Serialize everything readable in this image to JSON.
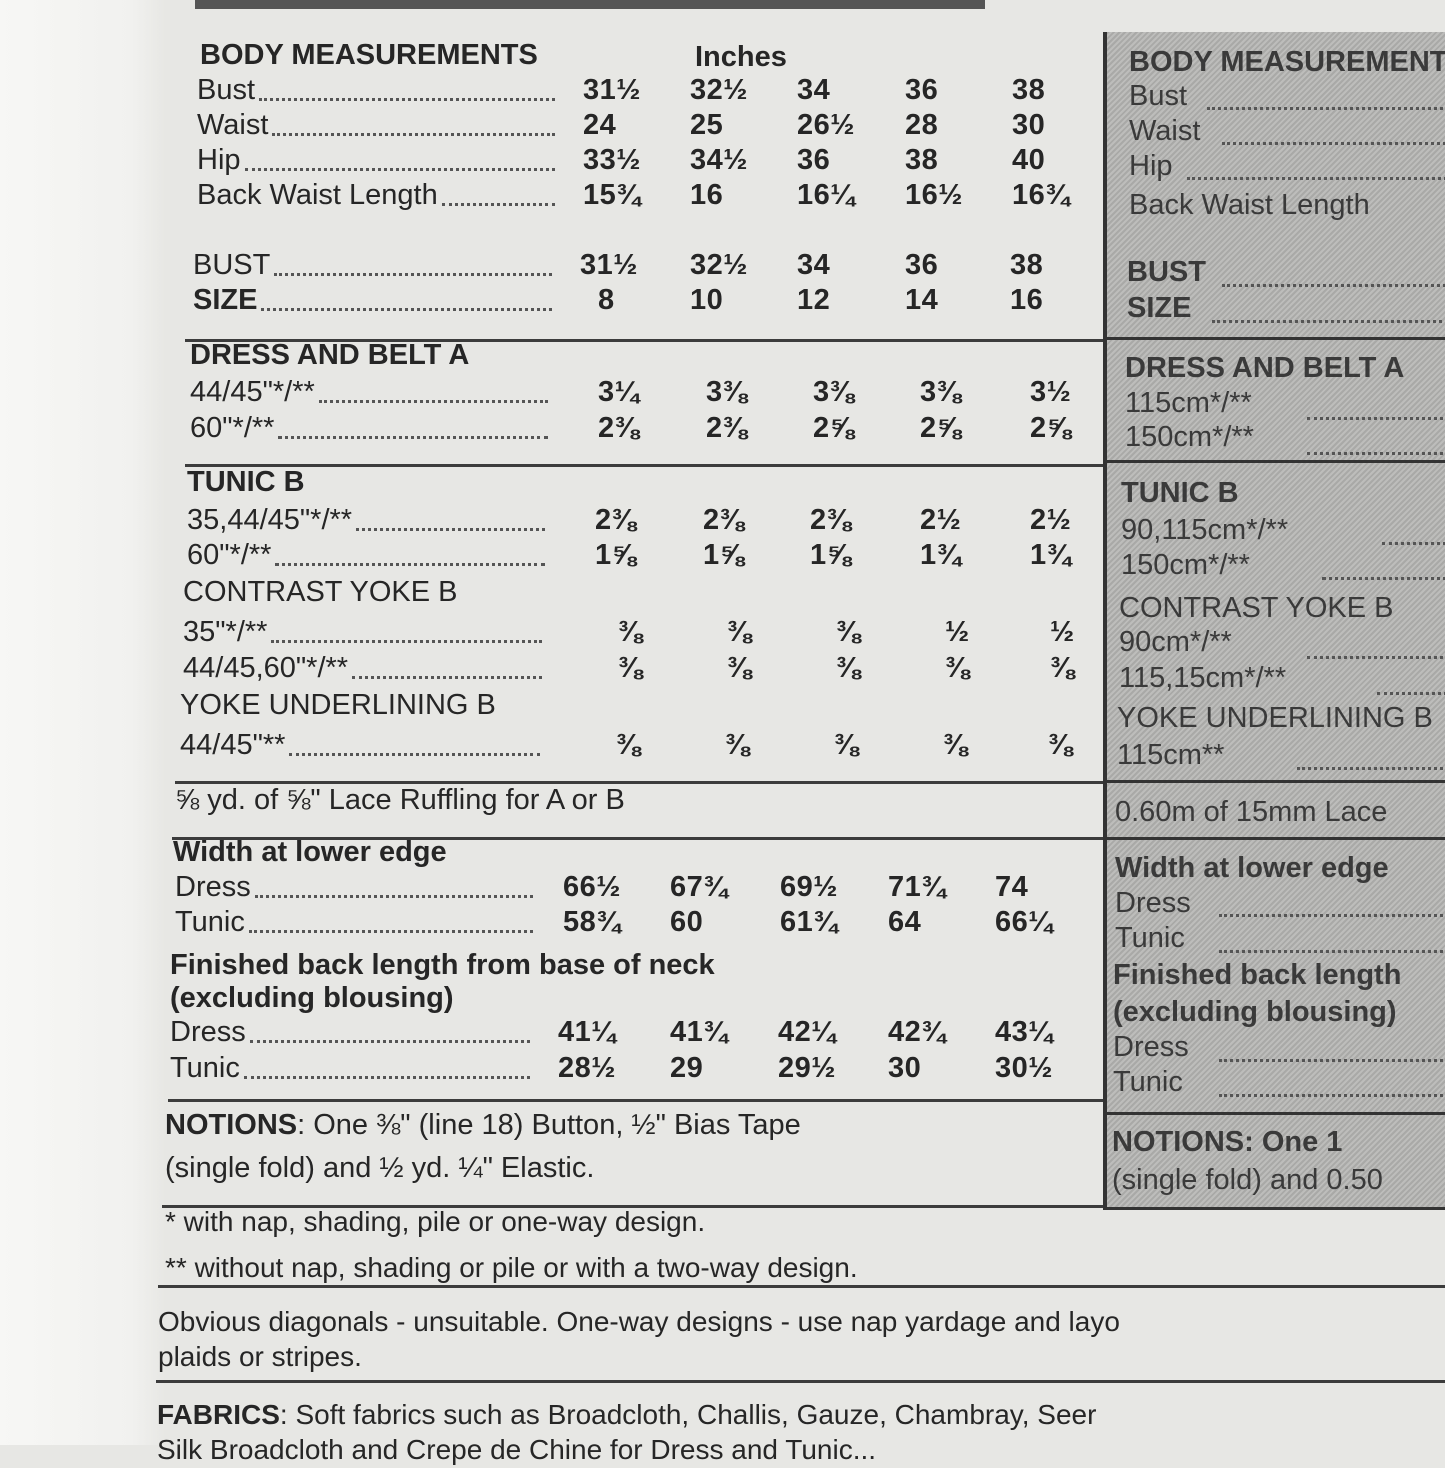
{
  "main": {
    "header": {
      "title": "BODY MEASUREMENTS",
      "unit": "Inches"
    },
    "body_rows": [
      {
        "label": "Bust",
        "values": [
          "31½",
          "32½",
          "34",
          "36",
          "38"
        ]
      },
      {
        "label": "Waist",
        "values": [
          "24",
          "25",
          "26½",
          "28",
          "30"
        ]
      },
      {
        "label": "Hip",
        "values": [
          "33½",
          "34½",
          "36",
          "38",
          "40"
        ]
      },
      {
        "label": "Back Waist Length",
        "values": [
          "15¾",
          "16",
          "16¼",
          "16½",
          "16¾"
        ]
      }
    ],
    "size_rows": [
      {
        "label": "BUST",
        "values": [
          "31½",
          "32½",
          "34",
          "36",
          "38"
        ]
      },
      {
        "label": "SIZE",
        "values": [
          "8",
          "10",
          "12",
          "14",
          "16"
        ]
      }
    ],
    "dress_belt": {
      "title": "DRESS AND BELT A",
      "rows": [
        {
          "label": "44/45\"*/**",
          "values": [
            "3¼",
            "3⅜",
            "3⅜",
            "3⅜",
            "3½"
          ]
        },
        {
          "label": "60\"*/**",
          "values": [
            "2⅜",
            "2⅜",
            "2⅝",
            "2⅝",
            "2⅝"
          ]
        }
      ]
    },
    "tunic": {
      "title": "TUNIC B",
      "rows": [
        {
          "label": "35,44/45\"*/**",
          "values": [
            "2⅜",
            "2⅜",
            "2⅜",
            "2½",
            "2½"
          ]
        },
        {
          "label": "60\"*/**",
          "values": [
            "1⅝",
            "1⅝",
            "1⅝",
            "1¾",
            "1¾"
          ]
        }
      ]
    },
    "contrast_yoke": {
      "title": "CONTRAST YOKE B",
      "rows": [
        {
          "label": "35\"*/**",
          "values": [
            "⅜",
            "⅜",
            "⅜",
            "½",
            "½"
          ]
        },
        {
          "label": "44/45,60\"*/**",
          "values": [
            "⅜",
            "⅜",
            "⅜",
            "⅜",
            "⅜"
          ]
        }
      ]
    },
    "yoke_underlining": {
      "title": "YOKE UNDERLINING B",
      "rows": [
        {
          "label": "44/45\"**",
          "values": [
            "⅜",
            "⅜",
            "⅜",
            "⅜",
            "⅜"
          ]
        }
      ]
    },
    "lace_note": "⅝ yd. of ⅝\" Lace Ruffling for A or B",
    "width": {
      "title": "Width at lower edge",
      "rows": [
        {
          "label": "Dress",
          "values": [
            "66½",
            "67¾",
            "69½",
            "71¾",
            "74"
          ]
        },
        {
          "label": "Tunic",
          "values": [
            "58¾",
            "60",
            "61¾",
            "64",
            "66¼"
          ]
        }
      ]
    },
    "finished": {
      "title": "Finished back length from base of neck",
      "subtitle": "(excluding blousing)",
      "rows": [
        {
          "label": "Dress",
          "values": [
            "41¼",
            "41¾",
            "42¼",
            "42¾",
            "43¼"
          ]
        },
        {
          "label": "Tunic",
          "values": [
            "28½",
            "29",
            "29½",
            "30",
            "30½"
          ]
        }
      ]
    },
    "notions": {
      "label": "NOTIONS",
      "line1": ": One ⅜\" (line 18) Button, ½\" Bias Tape",
      "line2": "(single fold) and ½ yd. ¼\" Elastic."
    }
  },
  "footnotes": {
    "nap": "* with nap, shading, pile or one-way design.",
    "without_nap": "** without nap, shading or pile or with a two-way design."
  },
  "suitability": {
    "line1": "Obvious diagonals - unsuitable. One-way designs - use nap yardage and layo",
    "line2": "plaids or stripes."
  },
  "fabrics": {
    "label": "FABRICS",
    "text": ": Soft fabrics such as Broadcloth, Challis, Gauze, Chambray, Seer",
    "line2": "Silk Broadcloth and Crepe de Chine for Dress and Tunic..."
  },
  "metric_panel": {
    "header": "BODY MEASUREMENTS",
    "bust": "Bust",
    "waist": "Waist",
    "hip": "Hip",
    "back_waist": "Back Waist Length",
    "bust2": "BUST",
    "size": "SIZE",
    "dress_belt": "DRESS AND BELT A",
    "dress_115": "115cm*/**",
    "dress_150": "150cm*/**",
    "tunic": "TUNIC B",
    "tunic_90": "90,115cm*/**",
    "tunic_150": "150cm*/**",
    "contrast": "CONTRAST YOKE B",
    "contrast_90": "90cm*/**",
    "contrast_115": "115,15cm*/**",
    "underlining": "YOKE UNDERLINING B",
    "underlining_115": "115cm**",
    "lace": "0.60m of 15mm Lace",
    "width": "Width at lower edge",
    "width_dress": "Dress",
    "width_tunic": "Tunic",
    "finished": "Finished back length",
    "excluding": "(excluding blousing)",
    "fin_dress": "Dress",
    "fin_tunic": "Tunic",
    "notions": "NOTIONS: One 1",
    "notions2": "(single fold) and 0.50"
  },
  "colors": {
    "paper": "#e7e7e4",
    "ink": "#262626",
    "panel_hatch": "#b3b3b1"
  }
}
